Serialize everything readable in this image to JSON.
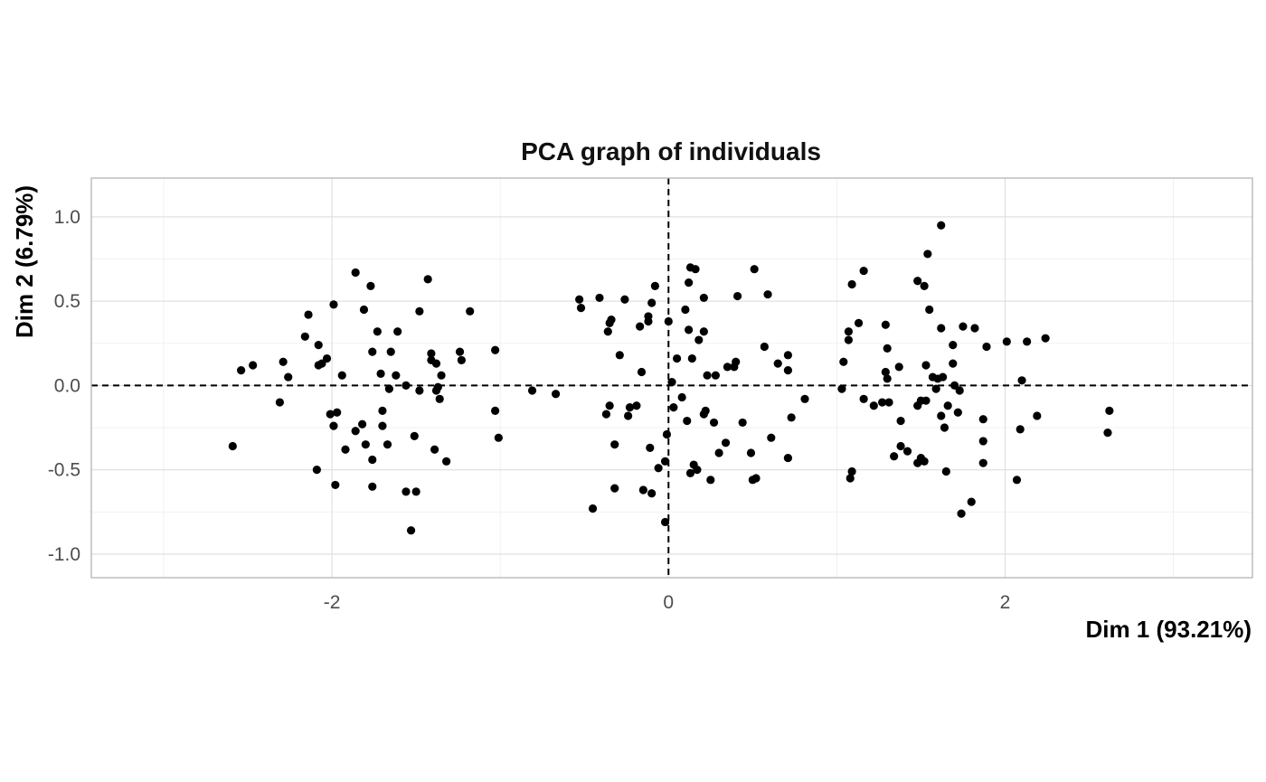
{
  "chart_data": {
    "type": "scatter",
    "title": "PCA graph of individuals",
    "xlabel": "Dim 1 (93.21%)",
    "ylabel": "Dim 2 (6.79%)",
    "xlim": [
      -3.43,
      3.47
    ],
    "ylim": [
      -1.14,
      1.23
    ],
    "xticks": [
      -2,
      0,
      2
    ],
    "yticks": [
      -1.0,
      -0.5,
      0.0,
      0.5,
      1.0
    ],
    "xtick_labels": [
      "-2",
      "0",
      "2"
    ],
    "ytick_labels": [
      "-1.0",
      "-0.5",
      "0.0",
      "0.5",
      "1.0"
    ],
    "grid": true,
    "reference_lines": {
      "x": 0,
      "y": 0,
      "style": "dashed"
    },
    "point_color": "#000000",
    "points": [
      [
        -2.59,
        -0.36
      ],
      [
        -2.54,
        0.09
      ],
      [
        -2.47,
        0.12
      ],
      [
        -2.31,
        -0.1
      ],
      [
        -2.29,
        0.14
      ],
      [
        -2.26,
        0.05
      ],
      [
        -2.16,
        0.29
      ],
      [
        -2.14,
        0.42
      ],
      [
        -2.09,
        -0.5
      ],
      [
        -2.08,
        0.12
      ],
      [
        -2.08,
        0.24
      ],
      [
        -2.06,
        0.13
      ],
      [
        -2.03,
        0.16
      ],
      [
        -2.01,
        -0.17
      ],
      [
        -1.99,
        0.48
      ],
      [
        -1.99,
        -0.24
      ],
      [
        -1.98,
        -0.59
      ],
      [
        -1.97,
        -0.16
      ],
      [
        -1.94,
        0.06
      ],
      [
        -1.92,
        -0.38
      ],
      [
        -1.86,
        0.67
      ],
      [
        -1.86,
        -0.27
      ],
      [
        -1.82,
        -0.23
      ],
      [
        -1.81,
        0.45
      ],
      [
        -1.8,
        -0.35
      ],
      [
        -1.77,
        0.59
      ],
      [
        -1.76,
        0.2
      ],
      [
        -1.76,
        -0.44
      ],
      [
        -1.76,
        -0.6
      ],
      [
        -1.73,
        0.32
      ],
      [
        -1.71,
        0.07
      ],
      [
        -1.7,
        -0.15
      ],
      [
        -1.7,
        -0.24
      ],
      [
        -1.67,
        -0.35
      ],
      [
        -1.66,
        -0.02
      ],
      [
        -1.65,
        0.2
      ],
      [
        -1.61,
        0.32
      ],
      [
        -1.62,
        0.06
      ],
      [
        -1.56,
        -0.63
      ],
      [
        -1.56,
        0.0
      ],
      [
        -1.53,
        -0.86
      ],
      [
        -1.51,
        -0.3
      ],
      [
        -1.5,
        -0.63
      ],
      [
        -1.48,
        -0.03
      ],
      [
        -1.48,
        0.44
      ],
      [
        -1.43,
        0.63
      ],
      [
        -1.41,
        0.19
      ],
      [
        -1.41,
        0.15
      ],
      [
        -1.39,
        -0.38
      ],
      [
        -1.38,
        0.13
      ],
      [
        -1.38,
        -0.03
      ],
      [
        -1.37,
        -0.01
      ],
      [
        -1.36,
        -0.08
      ],
      [
        -1.35,
        0.06
      ],
      [
        -1.32,
        -0.45
      ],
      [
        -1.24,
        0.2
      ],
      [
        -1.23,
        0.15
      ],
      [
        -1.18,
        0.44
      ],
      [
        -1.03,
        0.21
      ],
      [
        -1.03,
        -0.15
      ],
      [
        -1.01,
        -0.31
      ],
      [
        -0.81,
        -0.03
      ],
      [
        -0.67,
        -0.05
      ],
      [
        -0.53,
        0.51
      ],
      [
        -0.52,
        0.46
      ],
      [
        -0.45,
        -0.73
      ],
      [
        -0.41,
        0.52
      ],
      [
        -0.37,
        -0.17
      ],
      [
        -0.36,
        0.32
      ],
      [
        -0.35,
        0.37
      ],
      [
        -0.34,
        0.39
      ],
      [
        -0.35,
        -0.12
      ],
      [
        -0.32,
        -0.35
      ],
      [
        -0.32,
        -0.61
      ],
      [
        -0.29,
        0.18
      ],
      [
        -0.26,
        0.51
      ],
      [
        -0.24,
        -0.18
      ],
      [
        -0.23,
        -0.13
      ],
      [
        -0.19,
        -0.12
      ],
      [
        -0.17,
        0.35
      ],
      [
        -0.16,
        0.08
      ],
      [
        -0.15,
        -0.62
      ],
      [
        -0.12,
        0.38
      ],
      [
        -0.12,
        0.41
      ],
      [
        -0.11,
        -0.37
      ],
      [
        -0.1,
        -0.64
      ],
      [
        -0.1,
        0.49
      ],
      [
        -0.08,
        0.59
      ],
      [
        -0.06,
        -0.49
      ],
      [
        -0.02,
        -0.81
      ],
      [
        -0.02,
        -0.45
      ],
      [
        -0.01,
        -0.29
      ],
      [
        0.0,
        0.38
      ],
      [
        0.02,
        0.02
      ],
      [
        0.03,
        -0.13
      ],
      [
        0.05,
        0.16
      ],
      [
        0.08,
        -0.07
      ],
      [
        0.1,
        0.45
      ],
      [
        0.12,
        0.61
      ],
      [
        0.11,
        -0.21
      ],
      [
        0.12,
        0.33
      ],
      [
        0.13,
        -0.52
      ],
      [
        0.13,
        0.7
      ],
      [
        0.14,
        0.16
      ],
      [
        0.15,
        -0.47
      ],
      [
        0.16,
        0.69
      ],
      [
        0.17,
        -0.5
      ],
      [
        0.18,
        0.27
      ],
      [
        0.21,
        -0.17
      ],
      [
        0.21,
        0.32
      ],
      [
        0.21,
        0.52
      ],
      [
        0.22,
        -0.15
      ],
      [
        0.23,
        0.06
      ],
      [
        0.25,
        -0.56
      ],
      [
        0.27,
        -0.22
      ],
      [
        0.28,
        0.06
      ],
      [
        0.3,
        -0.4
      ],
      [
        0.34,
        -0.34
      ],
      [
        0.35,
        0.11
      ],
      [
        0.39,
        0.11
      ],
      [
        0.4,
        0.14
      ],
      [
        0.41,
        0.53
      ],
      [
        0.44,
        -0.22
      ],
      [
        0.49,
        -0.4
      ],
      [
        0.5,
        -0.56
      ],
      [
        0.52,
        -0.55
      ],
      [
        0.51,
        0.69
      ],
      [
        0.57,
        0.23
      ],
      [
        0.59,
        0.54
      ],
      [
        0.61,
        -0.31
      ],
      [
        0.65,
        0.13
      ],
      [
        0.71,
        0.09
      ],
      [
        0.71,
        0.18
      ],
      [
        0.71,
        -0.43
      ],
      [
        0.73,
        -0.19
      ],
      [
        0.81,
        -0.08
      ],
      [
        1.03,
        -0.02
      ],
      [
        1.04,
        0.14
      ],
      [
        1.07,
        0.27
      ],
      [
        1.07,
        0.32
      ],
      [
        1.08,
        -0.55
      ],
      [
        1.09,
        -0.51
      ],
      [
        1.09,
        0.6
      ],
      [
        1.13,
        0.37
      ],
      [
        1.16,
        0.68
      ],
      [
        1.16,
        -0.08
      ],
      [
        1.22,
        -0.12
      ],
      [
        1.27,
        -0.1
      ],
      [
        1.29,
        0.08
      ],
      [
        1.29,
        0.36
      ],
      [
        1.3,
        0.22
      ],
      [
        1.3,
        0.04
      ],
      [
        1.31,
        -0.1
      ],
      [
        1.34,
        -0.42
      ],
      [
        1.37,
        0.11
      ],
      [
        1.38,
        -0.36
      ],
      [
        1.38,
        -0.21
      ],
      [
        1.42,
        -0.39
      ],
      [
        1.48,
        -0.12
      ],
      [
        1.48,
        0.62
      ],
      [
        1.48,
        -0.46
      ],
      [
        1.5,
        -0.43
      ],
      [
        1.5,
        -0.09
      ],
      [
        1.52,
        -0.45
      ],
      [
        1.52,
        0.59
      ],
      [
        1.53,
        -0.09
      ],
      [
        1.54,
        0.78
      ],
      [
        1.55,
        0.45
      ],
      [
        1.53,
        0.12
      ],
      [
        1.57,
        0.05
      ],
      [
        1.59,
        -0.02
      ],
      [
        1.6,
        0.04
      ],
      [
        1.62,
        0.95
      ],
      [
        1.62,
        0.34
      ],
      [
        1.62,
        -0.18
      ],
      [
        1.63,
        0.05
      ],
      [
        1.64,
        -0.25
      ],
      [
        1.65,
        -0.51
      ],
      [
        1.66,
        -0.12
      ],
      [
        1.69,
        0.24
      ],
      [
        1.69,
        0.13
      ],
      [
        1.7,
        0.0
      ],
      [
        1.72,
        -0.16
      ],
      [
        1.73,
        -0.03
      ],
      [
        1.74,
        -0.76
      ],
      [
        1.75,
        0.35
      ],
      [
        1.8,
        -0.69
      ],
      [
        1.82,
        0.34
      ],
      [
        1.87,
        -0.33
      ],
      [
        1.87,
        -0.46
      ],
      [
        1.87,
        -0.2
      ],
      [
        1.89,
        0.23
      ],
      [
        2.01,
        0.26
      ],
      [
        2.07,
        -0.56
      ],
      [
        2.09,
        -0.26
      ],
      [
        2.1,
        0.03
      ],
      [
        2.13,
        0.26
      ],
      [
        2.19,
        -0.18
      ],
      [
        2.24,
        0.28
      ],
      [
        2.61,
        -0.28
      ],
      [
        2.62,
        -0.15
      ]
    ]
  }
}
